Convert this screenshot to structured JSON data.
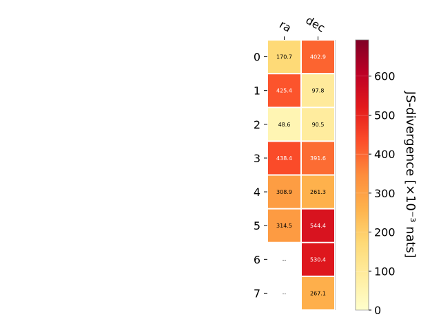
{
  "chart_data": {
    "type": "heatmap",
    "columns": [
      "ra",
      "dec"
    ],
    "rows": [
      "0",
      "1",
      "2",
      "3",
      "4",
      "5",
      "6",
      "7"
    ],
    "values": [
      [
        170.7,
        402.9
      ],
      [
        425.4,
        97.8
      ],
      [
        48.6,
        90.5
      ],
      [
        438.4,
        391.6
      ],
      [
        308.9,
        261.3
      ],
      [
        314.5,
        544.4
      ],
      [
        null,
        530.4
      ],
      [
        null,
        267.1
      ]
    ],
    "missing_label": "--",
    "colorbar": {
      "label": "JS-divergence [×10⁻³ nats]",
      "range": [
        0,
        693
      ],
      "ticks": [
        0,
        100,
        200,
        300,
        400,
        500,
        600
      ],
      "colormap": "YlOrRd"
    },
    "grid": false
  }
}
